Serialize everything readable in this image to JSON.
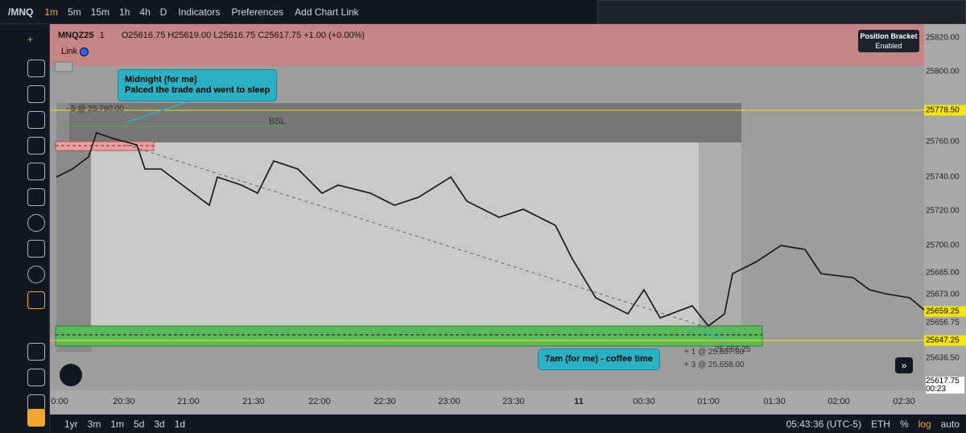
{
  "toolbar": {
    "symbol": "/MNQ",
    "intervals": [
      "1m",
      "5m",
      "15m",
      "1h",
      "4h",
      "D"
    ],
    "indicators": "Indicators",
    "preferences": "Preferences",
    "add_chart_link": "Add Chart Link"
  },
  "legend": {
    "symbol": "MNQZ25",
    "interval": "1",
    "ohlc": "O25616.75 H25619.00 L25616.75 C25617.75 +1.00 (+0.00%)",
    "link": "Link"
  },
  "position_bracket": {
    "title": "Position Bracket",
    "status": "Enabled"
  },
  "annotations": {
    "midnight": [
      "Midnight (for me)",
      "Palced the trade and went to sleep"
    ],
    "morning": "7am (for me) - coffee time",
    "bsl": "BSL",
    "order_short": "- 5 @ 25,760.00",
    "order_long_1": "+ 1 @ 25,657.00",
    "order_long_1_overlap": "25,656.25",
    "order_long_2": "+ 3 @ 25,658.00"
  },
  "price_axis": [
    "25820.00",
    "25800.00",
    "25778.50",
    "25760.00",
    "25740.00",
    "25720.00",
    "25700.00",
    "25685.00",
    "25673.00",
    "25659.25",
    "25656.75",
    "25647.25",
    "25636.50",
    "25617.75",
    "00:23"
  ],
  "time_axis": [
    "0:00",
    "20:30",
    "21:00",
    "21:30",
    "22:00",
    "22:30",
    "23:00",
    "23:30",
    "11",
    "00:30",
    "01:00",
    "01:30",
    "02:00",
    "02:30"
  ],
  "bottom_bar": {
    "ranges": [
      "1yr",
      "3m",
      "1m",
      "5d",
      "3d",
      "1d"
    ],
    "clock": "05:43:36 (UTC-5)",
    "session": "ETH",
    "percent": "%",
    "log": "log",
    "auto": "auto"
  }
}
